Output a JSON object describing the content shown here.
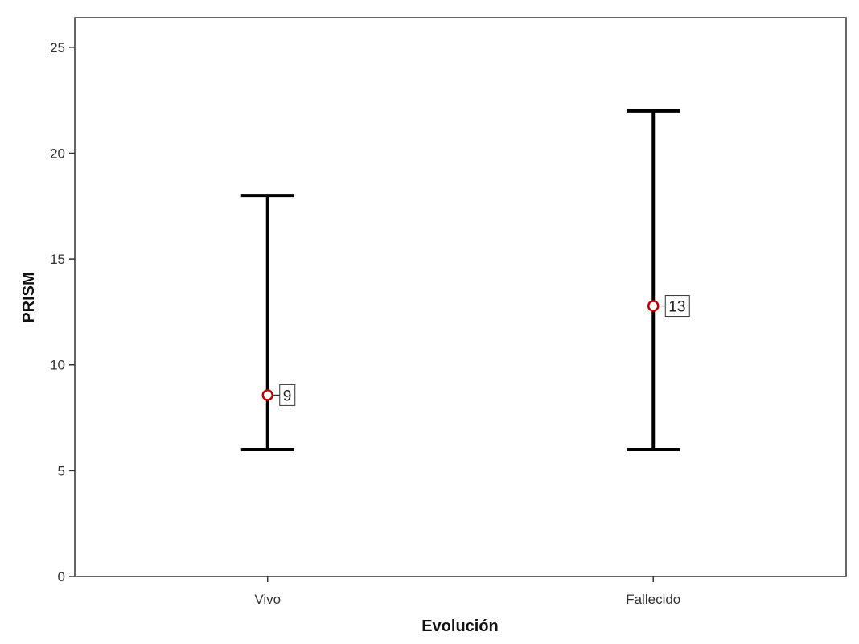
{
  "chart_data": {
    "type": "errorbar",
    "title": "",
    "xlabel": "Evolución",
    "ylabel": "PRISM",
    "categories": [
      "Vivo",
      "Fallecido"
    ],
    "series": [
      {
        "name": "PRISM",
        "center": [
          8.57,
          12.78
        ],
        "low": [
          6,
          6
        ],
        "high": [
          18,
          22
        ],
        "center_labels": [
          "9",
          "13"
        ]
      }
    ],
    "ylim": [
      0,
      26.4
    ],
    "yticks": [
      0,
      5,
      10,
      15,
      20,
      25
    ],
    "grid": false,
    "colors": {
      "bar": "#000000",
      "marker": "#c00000",
      "axis": "#333333"
    }
  }
}
